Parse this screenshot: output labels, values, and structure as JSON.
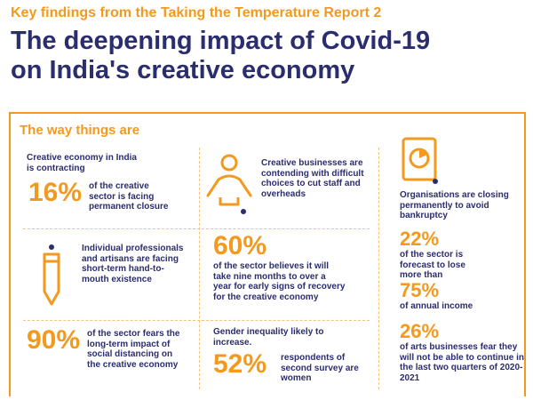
{
  "header": {
    "kicker": "Key findings from the Taking the Temperature Report 2",
    "headline_line1": "The deepening impact of Covid-19",
    "headline_line2": "on India's creative economy"
  },
  "panel": {
    "title": "The way things are"
  },
  "findings": {
    "contracting": {
      "lead": "Creative economy in India is contracting",
      "stat": "16%",
      "detail": "of the creative sector is facing permanent closure"
    },
    "staff": {
      "lead": "Creative businesses are contending with difficult choices to cut staff and overheads",
      "icon": "person-balance-icon"
    },
    "closing": {
      "lead": "Organisations are closing permanently to avoid bankruptcy",
      "icon": "pie-chart-document-icon",
      "stat1": "22%",
      "detail1": "of the sector is forecast to lose more than",
      "stat2": "75%",
      "detail2": "of annual income"
    },
    "hand_to_mouth": {
      "lead": "Individual professionals and artisans are facing short-term hand-to-mouth existence",
      "icon": "pencil-icon"
    },
    "recovery": {
      "stat": "60%",
      "detail": "of the sector believes it will take nine months to over a year for early signs of recovery for the creative economy"
    },
    "distancing": {
      "stat": "90%",
      "detail": "of the sector fears the long-term impact of social distancing on the creative economy"
    },
    "gender": {
      "lead": "Gender inequality likely to increase.",
      "stat": "52%",
      "detail": "respondents of second survey are women"
    },
    "arts_business": {
      "stat": "26%",
      "detail": "of arts businesses fear they will not be able to continue in the last two quarters of 2020-2021"
    }
  },
  "colors": {
    "accent": "#f39a1e",
    "navy": "#2b2d6e",
    "divider": "#f7c27a"
  }
}
